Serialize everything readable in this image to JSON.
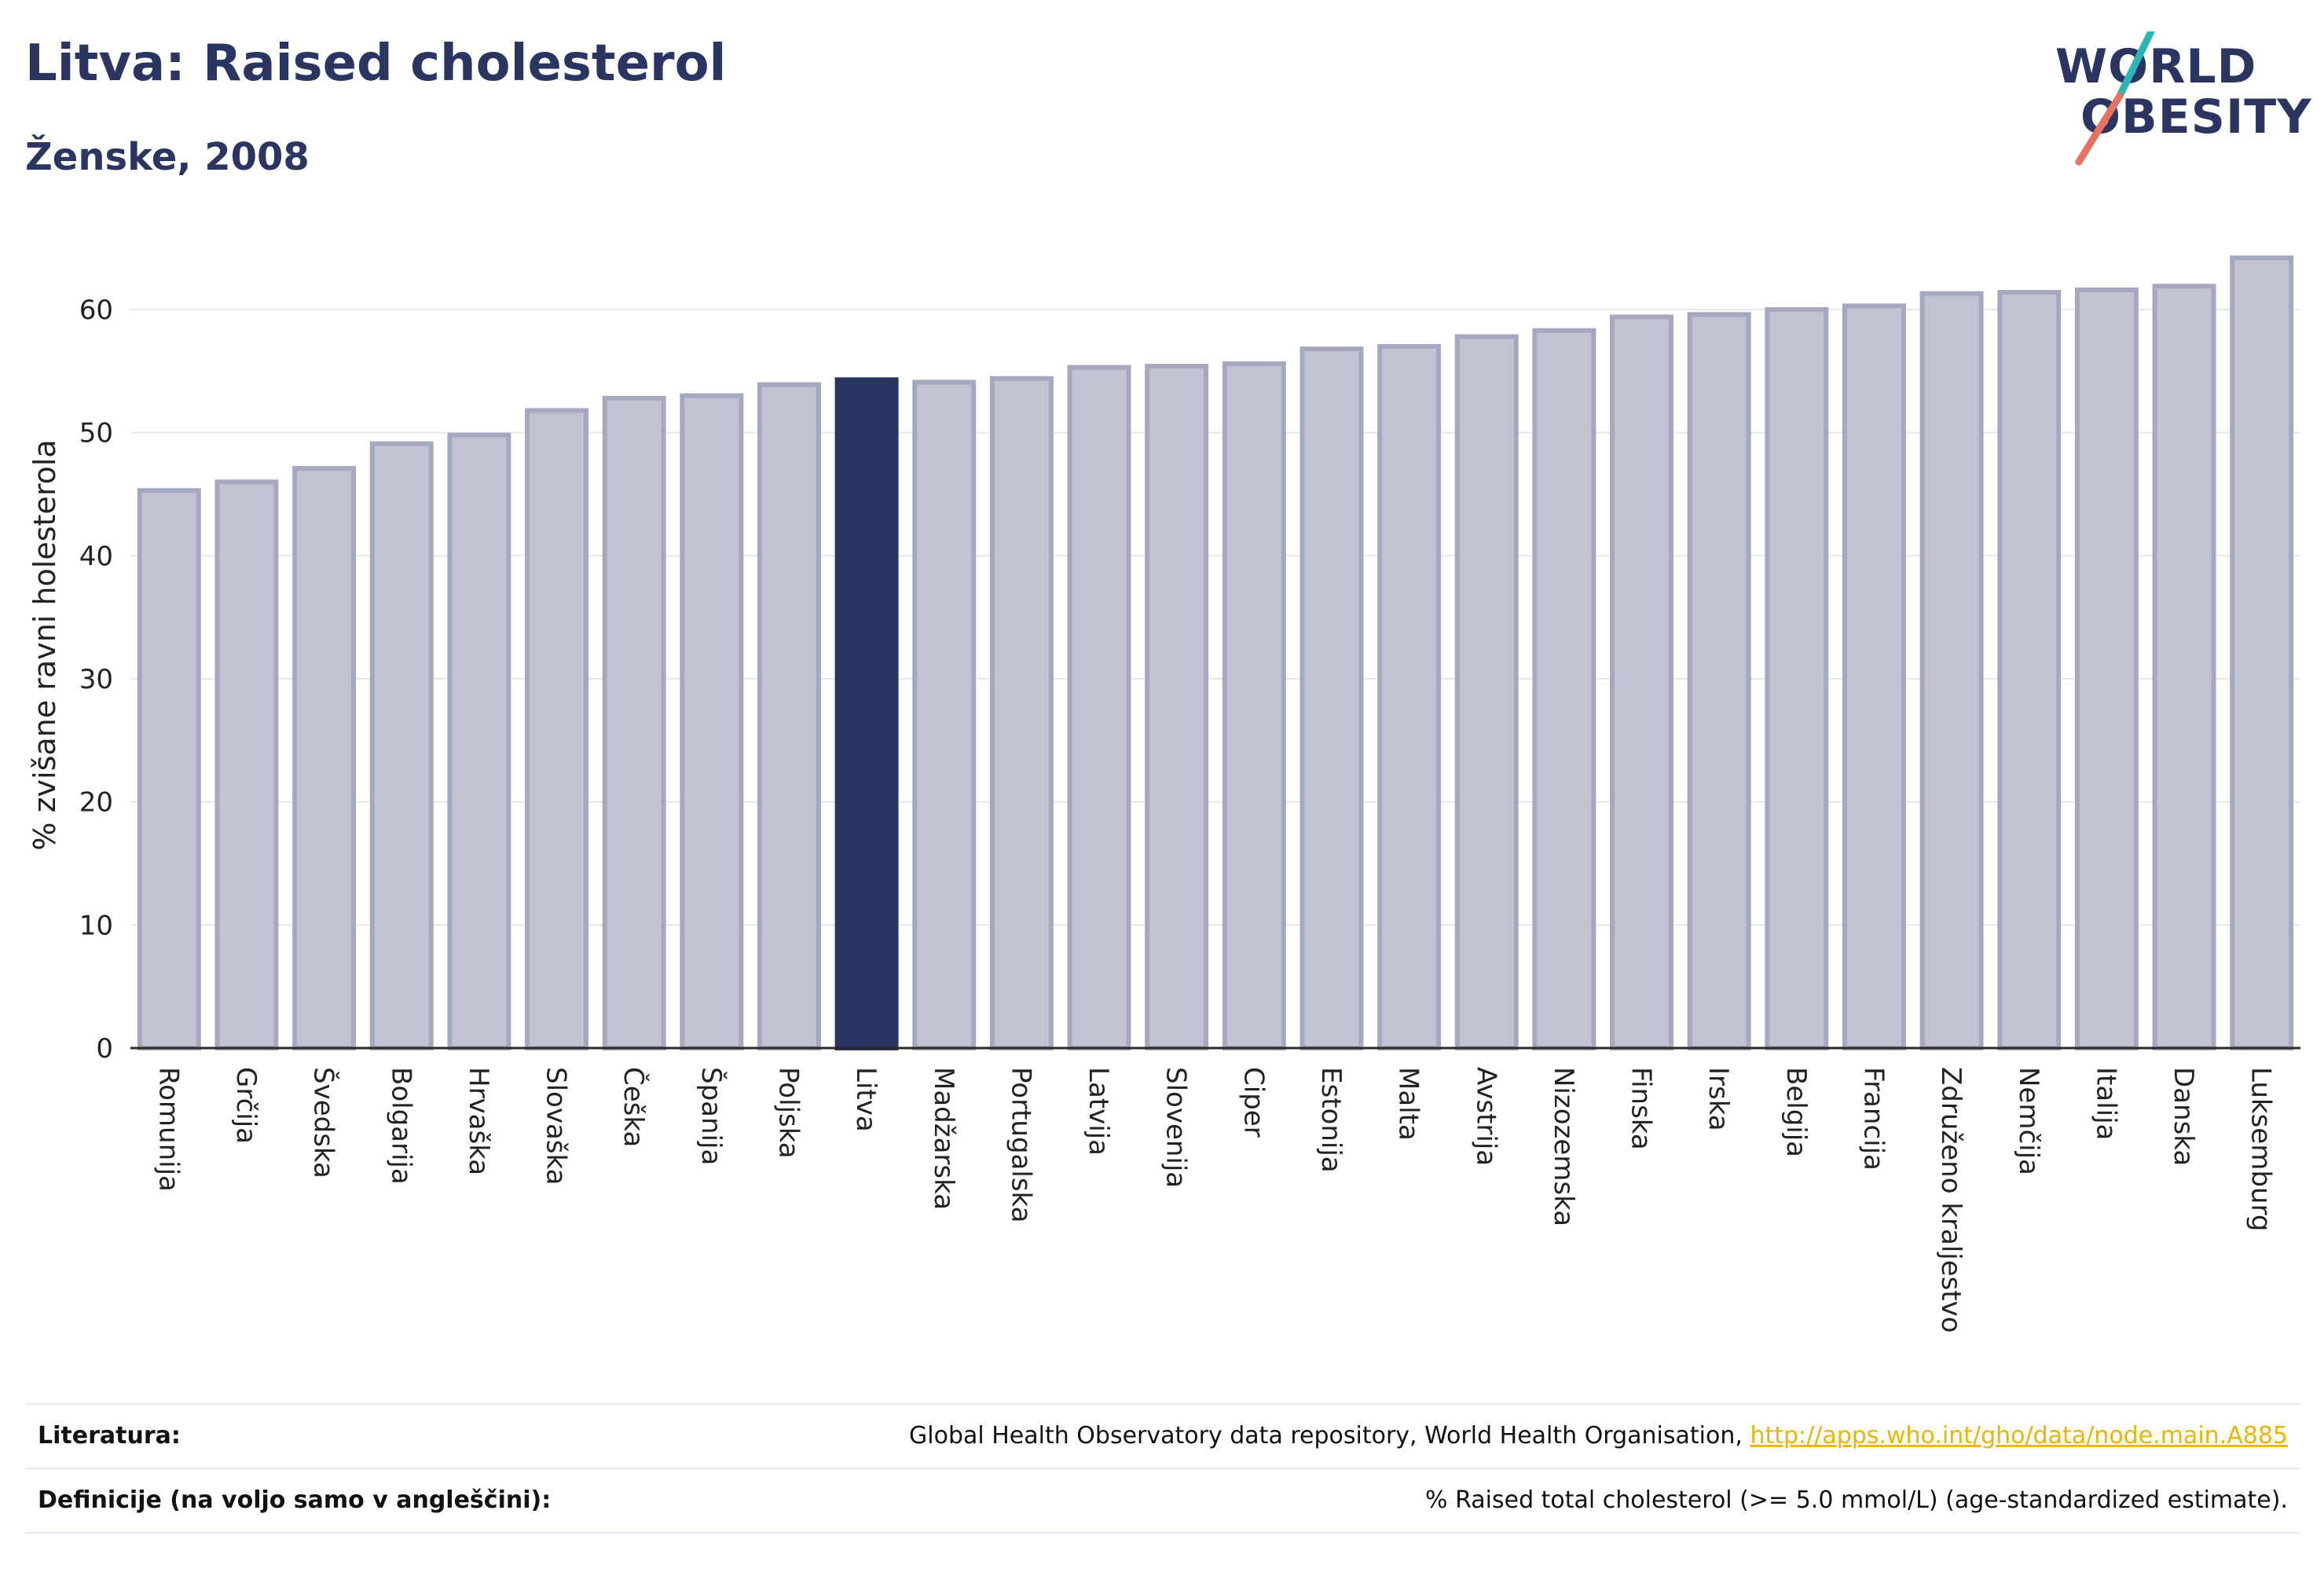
{
  "header": {
    "title": "Litva: Raised cholesterol",
    "subtitle": "Ženske, 2008"
  },
  "logo": {
    "line1": "WORLD",
    "line2": "OBESITY"
  },
  "colors": {
    "highlight": "#2a3561",
    "bar_fill": "#c0c3d1",
    "bar_stroke": "#a5a9bf",
    "grid": "#e6e7ee",
    "axis": "#2a2a2a",
    "logo_teal": "#2bb5b8",
    "logo_coral": "#e8725f",
    "link": "#f0b400"
  },
  "chart_data": {
    "type": "bar",
    "ylabel": "% zvišane ravni holesterola",
    "ylim": [
      0,
      66
    ],
    "yticks": [
      0,
      10,
      20,
      30,
      40,
      50,
      60
    ],
    "highlight": "Litva",
    "grid": true,
    "categories": [
      "Romunija",
      "Grčija",
      "Švedska",
      "Bolgarija",
      "Hrvaška",
      "Slovaška",
      "Češka",
      "Španija",
      "Poljska",
      "Litva",
      "Madžarska",
      "Portugalska",
      "Latvija",
      "Slovenija",
      "Ciper",
      "Estonija",
      "Malta",
      "Avstrija",
      "Nizozemska",
      "Finska",
      "Irska",
      "Belgija",
      "Francija",
      "Združeno kraljestvo",
      "Nemčija",
      "Italija",
      "Danska",
      "Luksemburg"
    ],
    "values": [
      45.3,
      46.0,
      47.1,
      49.1,
      49.8,
      51.8,
      52.8,
      53.0,
      53.9,
      54.3,
      54.1,
      54.4,
      55.3,
      55.4,
      55.6,
      56.8,
      57.0,
      57.8,
      58.3,
      59.4,
      59.6,
      60.0,
      60.3,
      61.3,
      61.4,
      61.6,
      61.9,
      64.2
    ]
  },
  "footer": {
    "literature_label": "Literatura:",
    "literature_text": "Global Health Observatory data repository, World Health Organisation, ",
    "literature_link": "http://apps.who.int/gho/data/node.main.A885",
    "definitions_label": "Definicije (na voljo samo v angleščini):",
    "definitions_text": "% Raised total cholesterol (>= 5.0 mmol/L) (age-standardized estimate)."
  }
}
